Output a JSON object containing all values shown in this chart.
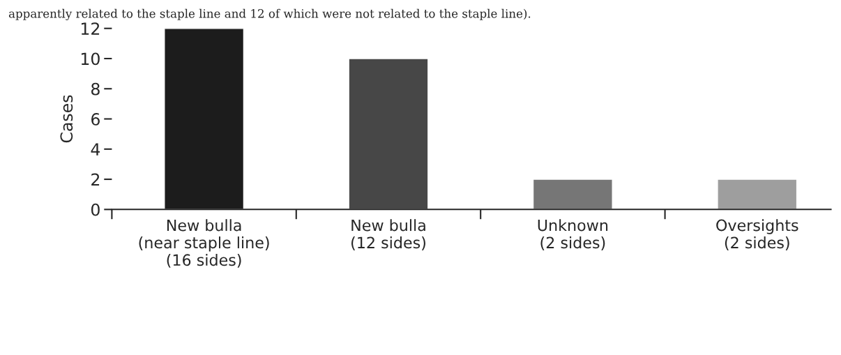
{
  "chart_data": {
    "type": "bar",
    "title": "apparently related to the staple line and 12 of which were not related to the staple line).",
    "ylabel": "Cases",
    "categories": [
      "New bulla\n(near staple line)\n(16 sides)",
      "New bulla\n(12 sides)",
      "Unknown\n(2 sides)",
      "Oversights\n(2 sides)"
    ],
    "values": [
      12,
      10,
      2,
      2
    ],
    "colors": [
      "#1c1c1c",
      "#474747",
      "#767676",
      "#9e9e9e"
    ],
    "ylim": [
      0,
      12
    ],
    "yticks": [
      0,
      2,
      4,
      6,
      8,
      10,
      12
    ],
    "grid": false,
    "legend": false
  }
}
